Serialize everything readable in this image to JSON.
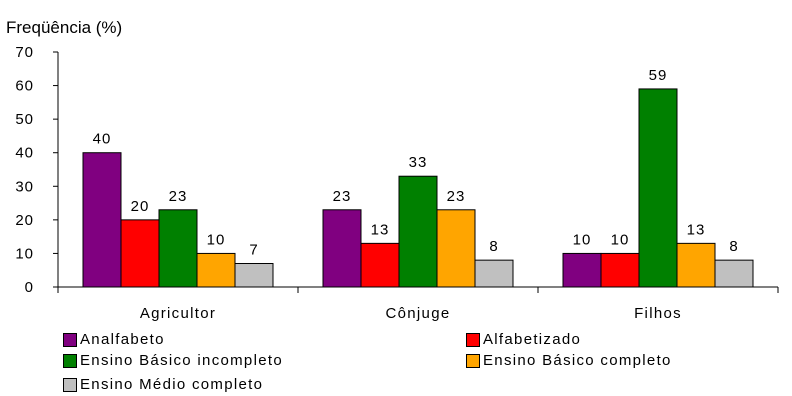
{
  "chart_data": {
    "type": "bar",
    "ylabel": "Freqüência (%)",
    "ylim": [
      0,
      70
    ],
    "yticks": [
      0,
      10,
      20,
      30,
      40,
      50,
      60,
      70
    ],
    "categories": [
      "Agricultor",
      "Cônjuge",
      "Filhos"
    ],
    "grid": false,
    "legend_position": "bottom",
    "series": [
      {
        "name": "Analfabeto",
        "color": "#800080",
        "values": [
          40,
          23,
          10
        ]
      },
      {
        "name": "Alfabetizado",
        "color": "#FF0000",
        "values": [
          20,
          13,
          10
        ]
      },
      {
        "name": "Ensino Básico incompleto",
        "color": "#008000",
        "values": [
          23,
          33,
          59
        ]
      },
      {
        "name": "Ensino Básico completo",
        "color": "#FFA500",
        "values": [
          10,
          23,
          13
        ]
      },
      {
        "name": "Ensino Médio completo",
        "color": "#C0C0C0",
        "values": [
          7,
          8,
          8
        ]
      }
    ]
  }
}
